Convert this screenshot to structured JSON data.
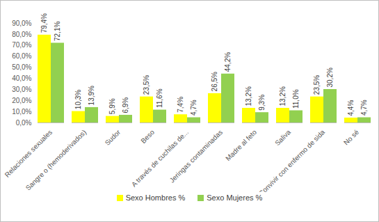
{
  "chart_data": {
    "type": "bar",
    "categories": [
      "Relaciones sexuales",
      "Sangre o (hemoderivados)",
      "Sudor",
      "Beso",
      "A través de cuchilas de...",
      "Jeringas contaminadas",
      "Madre al feto",
      "Saliva",
      "Convivir con enfermo de sida",
      "No sé"
    ],
    "series": [
      {
        "name": "Sexo Hombres %",
        "color": "#ffff00",
        "values": [
          79.4,
          10.3,
          5.9,
          23.5,
          7.4,
          26.5,
          13.2,
          13.2,
          23.5,
          4.4
        ],
        "value_labels": [
          "79,4%",
          "10,3%",
          "5,9%",
          "23,5%",
          "7,4%",
          "26,5%",
          "13,2%",
          "13,2%",
          "23,5%",
          "4,4%"
        ]
      },
      {
        "name": "Sexo Mujeres %",
        "color": "#92d050",
        "values": [
          72.1,
          13.9,
          6.9,
          11.6,
          4.7,
          44.2,
          9.3,
          11.0,
          30.2,
          4.7
        ],
        "value_labels": [
          "72,1%",
          "13,9%",
          "6,9%",
          "11,6%",
          "4,7%",
          "44,2%",
          "9,3%",
          "11,0%",
          "30,2%",
          "4,7%"
        ]
      }
    ],
    "ylim": [
      0,
      90
    ],
    "yticks": [
      {
        "value": 0,
        "label": "0,0%"
      },
      {
        "value": 10,
        "label": "10,0%"
      },
      {
        "value": 20,
        "label": "20,0%"
      },
      {
        "value": 30,
        "label": "30,0%"
      },
      {
        "value": 40,
        "label": "40,0%"
      },
      {
        "value": 50,
        "label": "50,0%"
      },
      {
        "value": 60,
        "label": "60,0%"
      },
      {
        "value": 70,
        "label": "70,0%"
      },
      {
        "value": 80,
        "label": "80,0%"
      },
      {
        "value": 90,
        "label": "90,0%"
      }
    ],
    "grid": false,
    "data_labels": true,
    "legend": "bottom"
  }
}
